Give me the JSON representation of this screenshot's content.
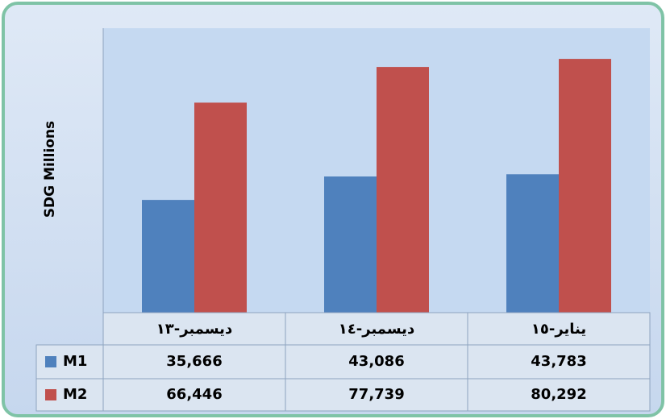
{
  "chart_data": {
    "type": "bar",
    "y_label": "SDG Millions",
    "categories": [
      "ديسمبر-١٣",
      "ديسمبر-١٤",
      "يناير-١٥"
    ],
    "series": [
      {
        "name": "M1",
        "color": "#4f81bd",
        "values": [
          35666,
          43086,
          43783
        ],
        "value_labels": [
          "35,666",
          "43,086",
          "43,783"
        ]
      },
      {
        "name": "M2",
        "color": "#c0504d",
        "values": [
          66446,
          77739,
          80292
        ],
        "value_labels": [
          "66,446",
          "77,739",
          "80,292"
        ]
      }
    ],
    "ylim": [
      0,
      90000
    ]
  }
}
